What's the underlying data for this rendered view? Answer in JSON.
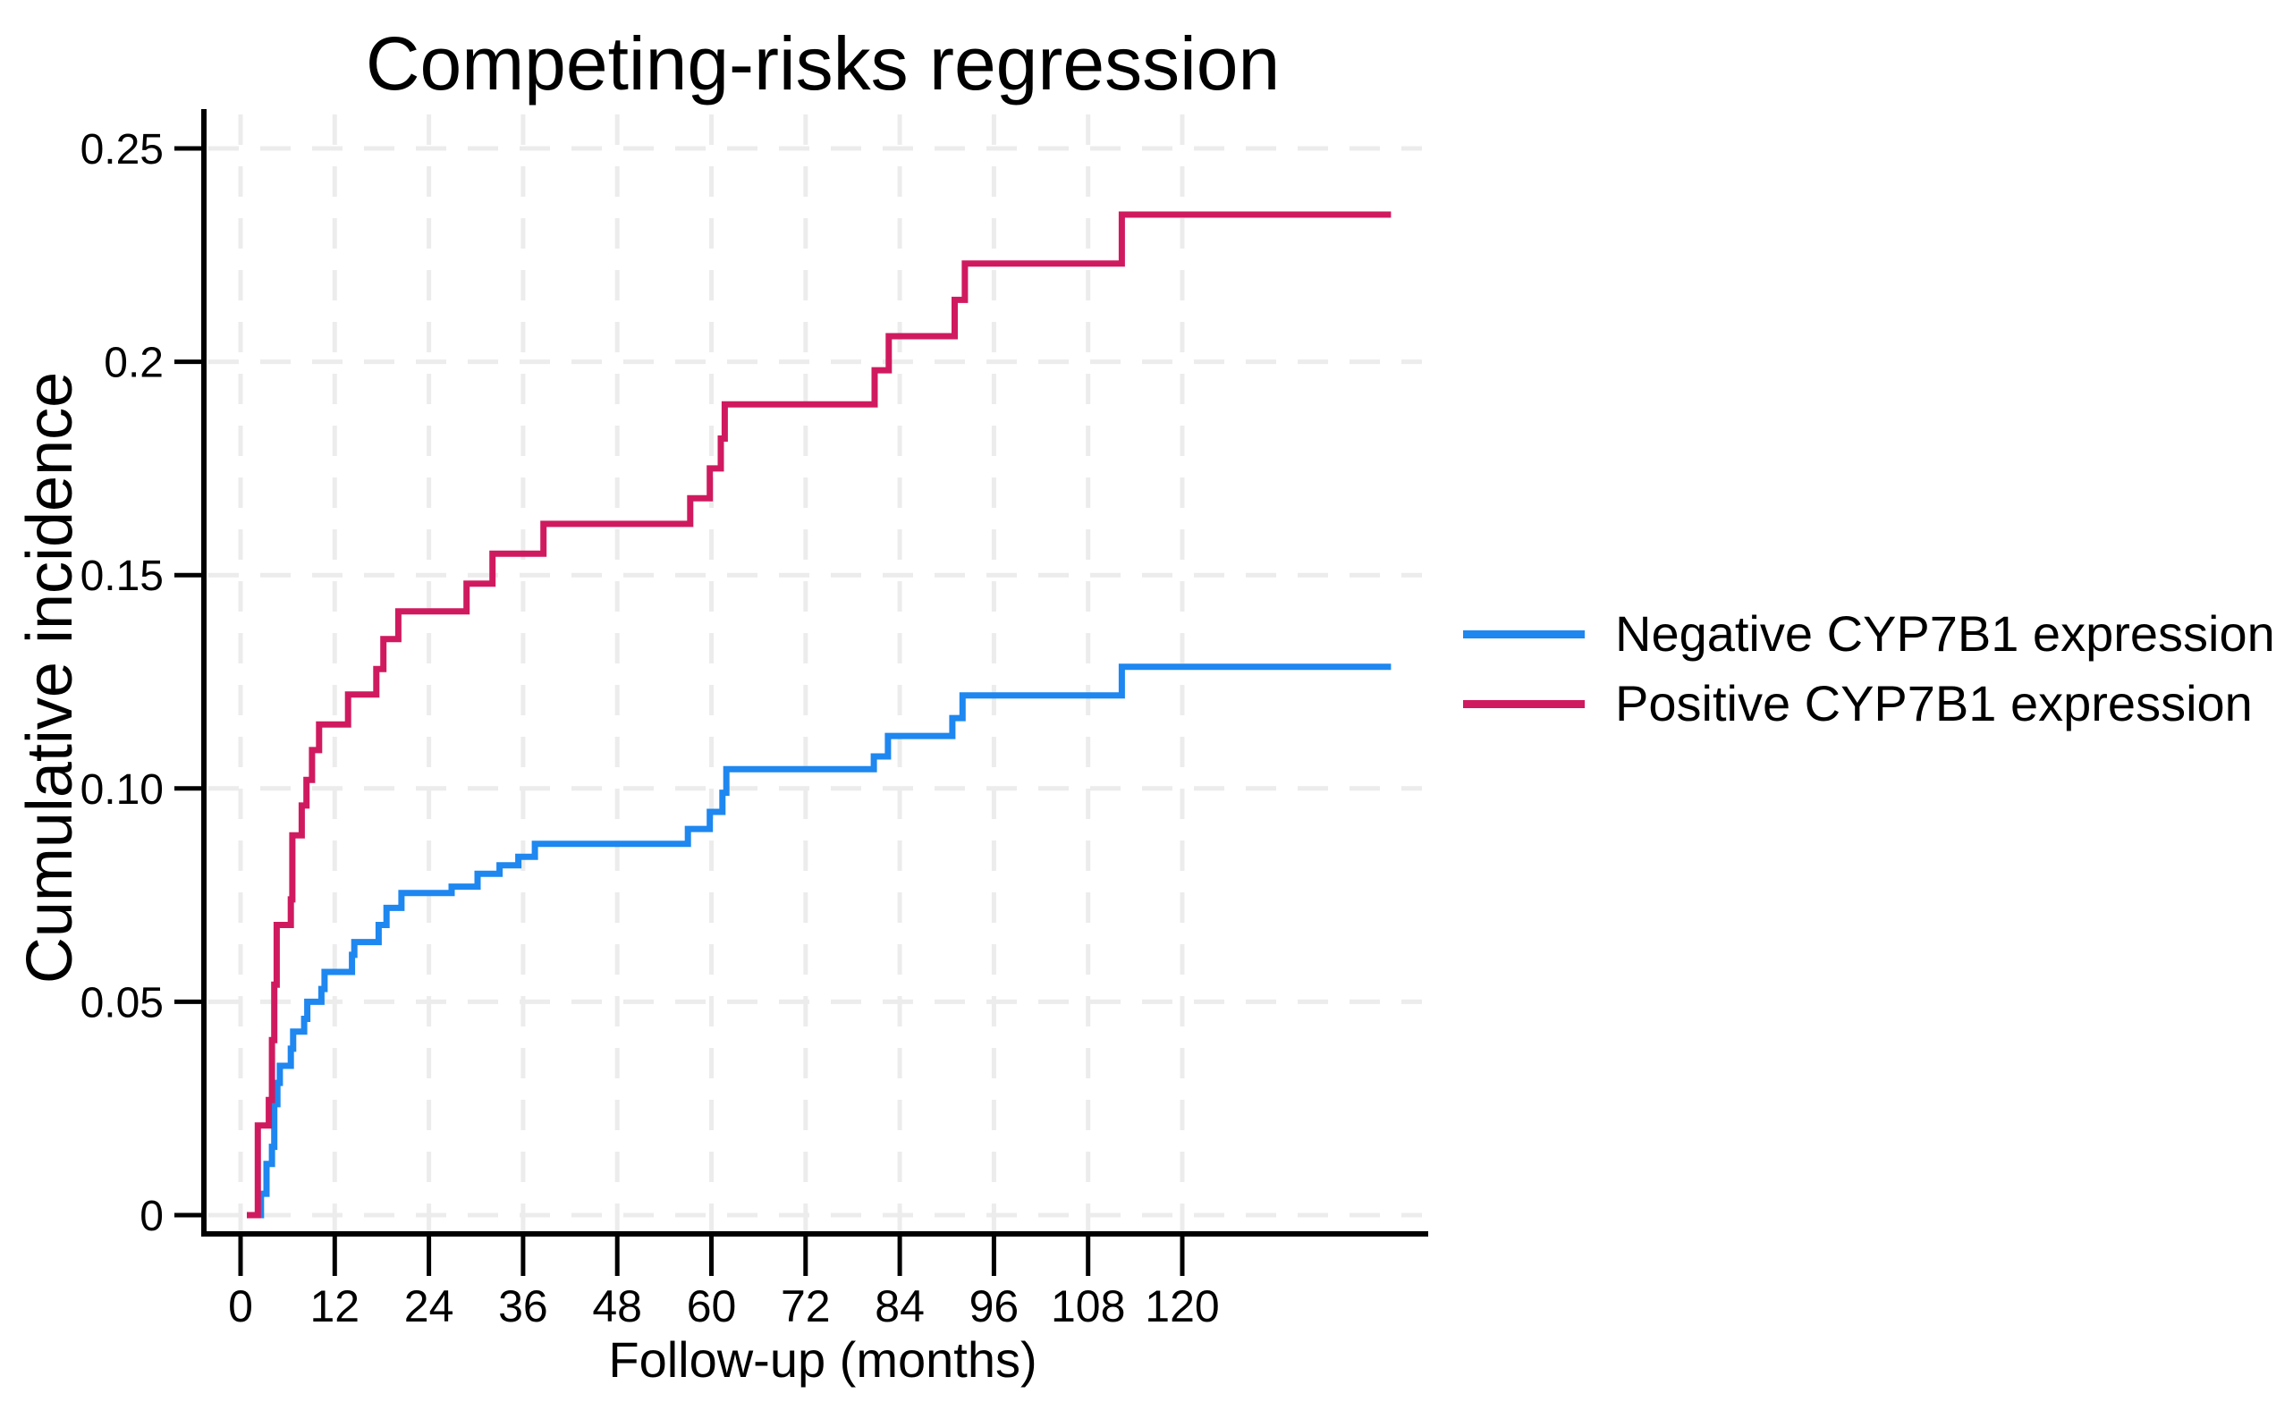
{
  "colors": {
    "negative_blue": "#1e87f0",
    "positive_red": "#d01a5f",
    "grid": "#ececec",
    "axis": "#000000",
    "text": "#000000",
    "background": "#ffffff"
  },
  "legend": [
    {
      "key": "negative",
      "label": "Negative CYP7B1 expression",
      "color": "#1e87f0"
    },
    {
      "key": "positive",
      "label": "Positive CYP7B1 expression",
      "color": "#d01a5f"
    }
  ],
  "chart_data": {
    "type": "line",
    "subtype": "step-cumulative-incidence",
    "title": "Competing-risks regression",
    "xlabel": "Follow-up (months)",
    "ylabel": "Cumulative incidence",
    "grid": "dashed",
    "legend_position": "right-middle",
    "xlim": [
      -4.7,
      151.3
    ],
    "ylim": [
      0,
      0.259
    ],
    "x_ticks": [
      0,
      12,
      24,
      36,
      48,
      60,
      72,
      84,
      96,
      108,
      120
    ],
    "x_tick_labels": [
      "0",
      "12",
      "24",
      "36",
      "48",
      "60",
      "72",
      "84",
      "96",
      "108",
      "120"
    ],
    "y_ticks": [
      0,
      0.05,
      0.1,
      0.15,
      0.2,
      0.25
    ],
    "y_tick_labels": [
      "0",
      "0.05",
      "0.10",
      "0.15",
      "0.2",
      "0.25"
    ],
    "x_curve_end": 146.6,
    "series": [
      {
        "key": "negative",
        "name": "Negative CYP7B1 expression",
        "color": "#1e87f0",
        "points": [
          [
            2.0,
            0
          ],
          [
            2.6,
            0.005
          ],
          [
            3.3,
            0.012
          ],
          [
            4.0,
            0.016
          ],
          [
            4.3,
            0.026
          ],
          [
            4.7,
            0.031
          ],
          [
            5.0,
            0.035
          ],
          [
            6.4,
            0.039
          ],
          [
            6.7,
            0.043
          ],
          [
            8.1,
            0.046
          ],
          [
            8.5,
            0.05
          ],
          [
            10.3,
            0.053
          ],
          [
            10.7,
            0.057
          ],
          [
            14.2,
            0.061
          ],
          [
            14.5,
            0.064
          ],
          [
            17.6,
            0.068
          ],
          [
            18.6,
            0.072
          ],
          [
            20.5,
            0.0755
          ],
          [
            26.9,
            0.077
          ],
          [
            30.2,
            0.08
          ],
          [
            33.0,
            0.082
          ],
          [
            35.4,
            0.084
          ],
          [
            37.5,
            0.087
          ],
          [
            57.0,
            0.0905
          ],
          [
            59.8,
            0.0945
          ],
          [
            61.4,
            0.099
          ],
          [
            61.9,
            0.1045
          ],
          [
            80.7,
            0.1075
          ],
          [
            82.5,
            0.1123
          ],
          [
            90.7,
            0.1165
          ],
          [
            92.0,
            0.1218
          ],
          [
            112.3,
            0.1285
          ]
        ]
      },
      {
        "key": "positive",
        "name": "Positive CYP7B1 expression",
        "color": "#d01a5f",
        "points": [
          [
            0.8,
            0
          ],
          [
            2.2,
            0.021
          ],
          [
            3.6,
            0.027
          ],
          [
            4.0,
            0.041
          ],
          [
            4.3,
            0.054
          ],
          [
            4.6,
            0.068
          ],
          [
            6.4,
            0.074
          ],
          [
            6.6,
            0.089
          ],
          [
            7.8,
            0.096
          ],
          [
            8.4,
            0.102
          ],
          [
            9.1,
            0.109
          ],
          [
            10.0,
            0.115
          ],
          [
            13.7,
            0.122
          ],
          [
            17.3,
            0.128
          ],
          [
            18.2,
            0.135
          ],
          [
            20.1,
            0.1415
          ],
          [
            28.8,
            0.148
          ],
          [
            32.1,
            0.155
          ],
          [
            38.6,
            0.162
          ],
          [
            57.3,
            0.168
          ],
          [
            59.8,
            0.175
          ],
          [
            61.2,
            0.182
          ],
          [
            61.7,
            0.19
          ],
          [
            80.8,
            0.198
          ],
          [
            82.6,
            0.206
          ],
          [
            91.0,
            0.2145
          ],
          [
            92.3,
            0.223
          ],
          [
            112.3,
            0.2345
          ]
        ]
      }
    ]
  }
}
